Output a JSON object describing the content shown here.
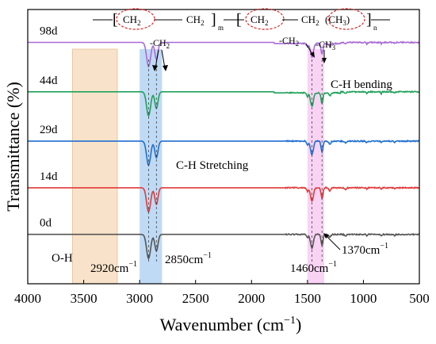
{
  "chart_data": {
    "type": "line",
    "xlabel": "Wavenumber (cm",
    "xlabel_sup": "−1",
    "xlabel_close": ")",
    "ylabel": "Transmittance (%)",
    "xlim": [
      4000,
      500
    ],
    "x_ticks": [
      4000,
      3500,
      3000,
      2500,
      2000,
      1500,
      1000,
      500
    ],
    "grid": false,
    "series": [
      {
        "name": "98d",
        "color": "#a86bd6",
        "baseline": 0.88,
        "profile": "aged"
      },
      {
        "name": "44d",
        "color": "#1fa15a",
        "baseline": 0.7,
        "profile": "aged"
      },
      {
        "name": "29d",
        "color": "#1f6fd1",
        "baseline": 0.52,
        "profile": "fresh"
      },
      {
        "name": "14d",
        "color": "#e23a3a",
        "baseline": 0.35,
        "profile": "fresh"
      },
      {
        "name": "0d",
        "color": "#555555",
        "baseline": 0.18,
        "profile": "fresh"
      }
    ],
    "peaks": [
      {
        "x": 2920,
        "depth": 0.8,
        "width": 25
      },
      {
        "x": 2850,
        "depth": 0.55,
        "width": 20
      },
      {
        "x": 1460,
        "depth": 0.45,
        "width": 18
      },
      {
        "x": 1370,
        "depth": 0.35,
        "width": 12
      },
      {
        "x": 1500,
        "depth": 0.12,
        "width": 10
      },
      {
        "x": 1300,
        "depth": 0.1,
        "width": 12
      },
      {
        "x": 1160,
        "depth": 0.05,
        "width": 12
      },
      {
        "x": 970,
        "depth": 0.05,
        "width": 8
      },
      {
        "x": 840,
        "depth": 0.06,
        "width": 6
      },
      {
        "x": 720,
        "depth": 0.04,
        "width": 6
      }
    ],
    "bands": [
      {
        "x_from": 3600,
        "x_to": 3200,
        "color": "#f6d9b8",
        "label": "O-H"
      },
      {
        "x_from": 3000,
        "x_to": 2800,
        "color": "#a9cef2",
        "label": "C-H Stretching"
      },
      {
        "x_from": 1500,
        "x_to": 1350,
        "color": "#f7c4f0",
        "label": "C-H bending"
      }
    ],
    "annotations": {
      "oh": "O-H",
      "ch_stretch": "C-H Stretching",
      "ch_bending": "C-H bending",
      "peak_2920": "2920cm",
      "peak_2850": "2850cm",
      "peak_1460": "1460cm",
      "peak_1370": "1370cm",
      "unit_sup": "−1",
      "ch2_a": "-CH",
      "ch2_b": "-CH",
      "ch3": "-CH",
      "sub2": "2",
      "sub3": "3"
    },
    "formula": {
      "ch2_1": "CH",
      "ch2_2": "CH",
      "ch2_3": "CH",
      "ch2_4": "CH",
      "ch3": "(CH",
      "sub2": "2",
      "sub3": "3",
      "close": ")",
      "m": "m",
      "n": "n"
    }
  }
}
